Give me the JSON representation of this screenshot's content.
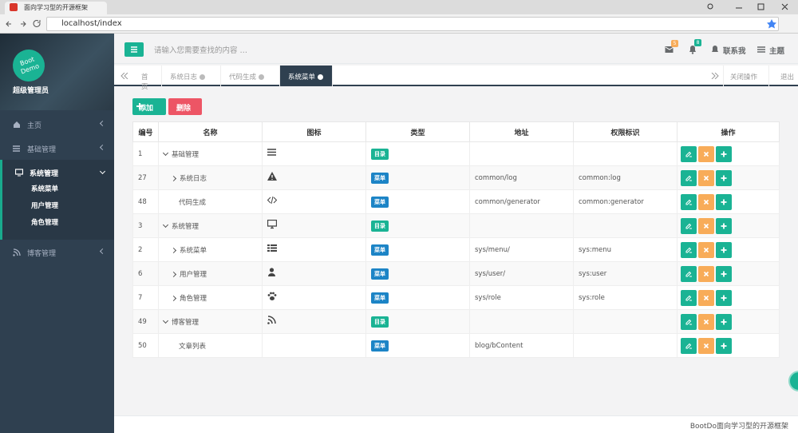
{
  "browser": {
    "tab_title": "面向学习型的开源框架",
    "url": "localhost/index"
  },
  "sidebar": {
    "logo": [
      "Boot",
      "Demo"
    ],
    "user": "超级管理员",
    "menu": [
      {
        "label": "主页"
      },
      {
        "label": "基础管理"
      },
      {
        "label": "系统管理",
        "children": [
          "系统菜单",
          "用户管理",
          "角色管理"
        ]
      },
      {
        "label": "博客管理"
      }
    ]
  },
  "header": {
    "search_placeholder": "请输入您需要查找的内容 …",
    "mail_badge": 5,
    "bell_badge": 8,
    "contact": "联系我",
    "theme": "主题"
  },
  "tabs": {
    "items": [
      "首页",
      "系统日志",
      "代码生成",
      "系统菜单"
    ],
    "close_ops": "关闭操作",
    "logout": "退出"
  },
  "toolbar": {
    "add": "添加",
    "delete": "删除"
  },
  "table": {
    "columns": [
      "编号",
      "名称",
      "图标",
      "类型",
      "地址",
      "权限标识",
      "操作"
    ],
    "rows": [
      {
        "id": 1,
        "name": "基础管理",
        "type": "目录"
      },
      {
        "id": 27,
        "name": "系统日志",
        "type": "菜单",
        "url": "common/log",
        "perms": "common:log"
      },
      {
        "id": 48,
        "name": "代码生成",
        "type": "菜单",
        "url": "common/generator",
        "perms": "common:generator"
      },
      {
        "id": 3,
        "name": "系统管理",
        "type": "目录"
      },
      {
        "id": 2,
        "name": "系统菜单",
        "type": "菜单",
        "url": "sys/menu/",
        "perms": "sys:menu"
      },
      {
        "id": 6,
        "name": "用户管理",
        "type": "菜单",
        "url": "sys/user/",
        "perms": "sys:user"
      },
      {
        "id": 7,
        "name": "角色管理",
        "type": "菜单",
        "url": "sys/role",
        "perms": "sys:role"
      },
      {
        "id": 49,
        "name": "博客管理",
        "type": "目录"
      },
      {
        "id": 50,
        "name": "文章列表",
        "type": "菜单",
        "url": "blog/bContent"
      }
    ]
  },
  "footer": "BootDo面向学习型的开源框架"
}
